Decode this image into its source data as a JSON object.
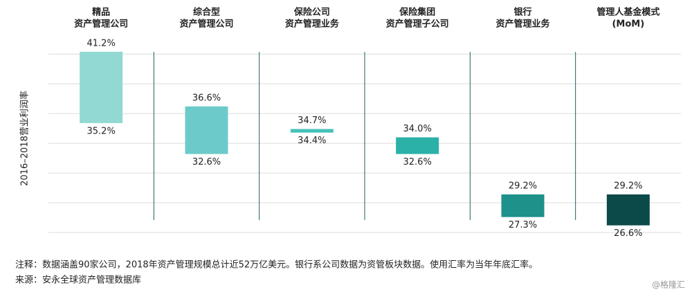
{
  "chart_data": {
    "type": "range-bar",
    "categories": [
      [
        "精品",
        "资产管理公司"
      ],
      [
        "综合型",
        "资产管理公司"
      ],
      [
        "保险公司",
        "资产管理业务"
      ],
      [
        "保险集团",
        "资产管理子公司"
      ],
      [
        "银行",
        "资产管理业务"
      ],
      [
        "管理人基金模式",
        "(MoM)"
      ]
    ],
    "high": [
      41.2,
      36.6,
      34.7,
      34.0,
      29.2,
      29.2
    ],
    "high_labels": [
      "41.2%",
      "36.6%",
      "34.7%",
      "34.0%",
      "29.2%",
      "29.2%"
    ],
    "low": [
      35.2,
      32.6,
      34.4,
      32.6,
      27.3,
      26.6
    ],
    "low_labels": [
      "35.2%",
      "32.6%",
      "34.4%",
      "32.6%",
      "27.3%",
      "26.6%"
    ],
    "colors": [
      "#92d8d3",
      "#6ccbca",
      "#45c1b9",
      "#2bb1a8",
      "#1d918a",
      "#0b4a48"
    ],
    "ylabel": "2016–2018营业利润率",
    "ylim": [
      26,
      42
    ],
    "yticks": [
      26,
      28.5,
      31,
      33.5,
      36,
      38.5,
      41
    ],
    "grid": true,
    "note": "注释：数据涵盖90家公司，2018年资产管理规模总计近52万亿美元。银行系公司数据为资管板块数据。使用汇率为当年年底汇率。",
    "source": "来源：安永全球资产管理数据库",
    "watermark": "@格隆汇"
  }
}
